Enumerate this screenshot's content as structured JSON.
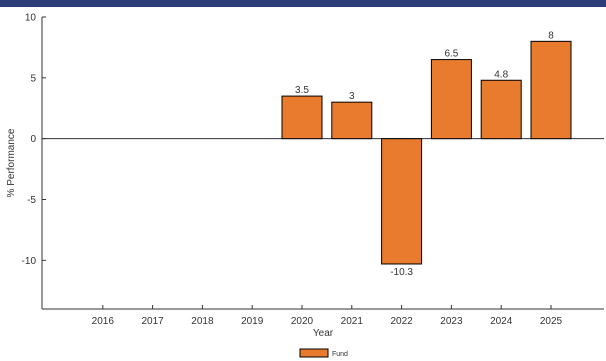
{
  "colors": {
    "header_bar": "#2c3e7a",
    "bar_fill": "#e87b2e",
    "bar_stroke": "#000000",
    "axis": "#333333",
    "grid": "#dddddd"
  },
  "chart_data": {
    "type": "bar",
    "categories": [
      "2016",
      "2017",
      "2018",
      "2019",
      "2020",
      "2021",
      "2022",
      "2023",
      "2024",
      "2025"
    ],
    "series": [
      {
        "name": "Fund",
        "values": [
          null,
          null,
          null,
          null,
          3.5,
          3,
          -10.3,
          6.5,
          4.8,
          8
        ],
        "labels": [
          "",
          "",
          "",
          "",
          "3.5",
          "3",
          "-10.3",
          "6.5",
          "4.8",
          "8"
        ]
      }
    ],
    "xlabel": "Year",
    "ylabel": "% Performance",
    "ylim": [
      -14,
      10
    ],
    "yticks": [
      10,
      5,
      0,
      -5,
      -10
    ],
    "ytick_labels": [
      "10",
      "5",
      "0",
      "-5",
      "-10"
    ],
    "grid": false,
    "legend": "bottom-center"
  }
}
